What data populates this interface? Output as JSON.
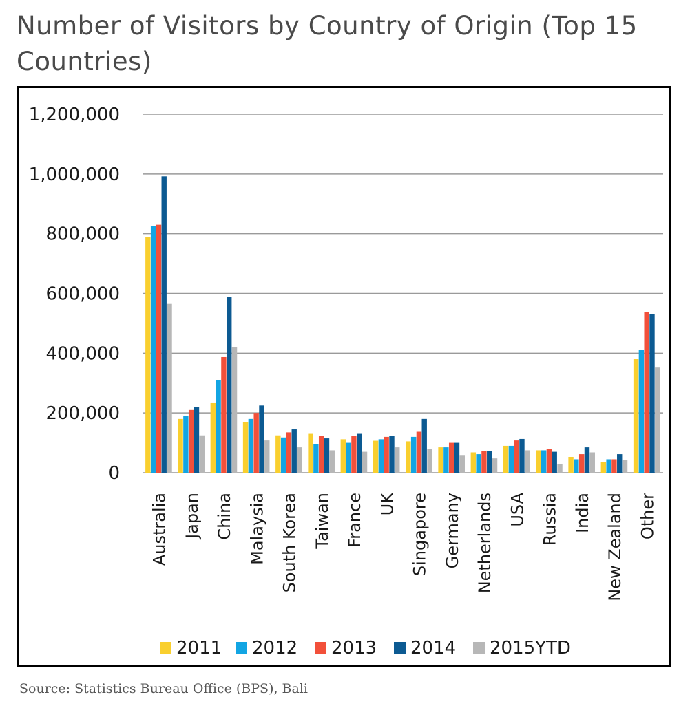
{
  "title": "Number of Visitors by Country of Origin (Top 15 Countries)",
  "source": "Source: Statistics Bureau Office (BPS), Bali",
  "chart_data": {
    "type": "bar",
    "categories": [
      "Australia",
      "Japan",
      "China",
      "Malaysia",
      "South Korea",
      "Taiwan",
      "France",
      "UK",
      "Singapore",
      "Germany",
      "Netherlands",
      "USA",
      "Russia",
      "India",
      "New Zealand",
      "Other"
    ],
    "series": [
      {
        "name": "2011",
        "color": "#f9cf2e",
        "values": [
          790000,
          180000,
          235000,
          170000,
          125000,
          130000,
          112000,
          107000,
          105000,
          85000,
          68000,
          90000,
          75000,
          53000,
          35000,
          380000
        ]
      },
      {
        "name": "2012",
        "color": "#12a5e3",
        "values": [
          825000,
          190000,
          310000,
          180000,
          118000,
          95000,
          100000,
          112000,
          120000,
          85000,
          62000,
          90000,
          75000,
          45000,
          45000,
          410000
        ]
      },
      {
        "name": "2013",
        "color": "#f2503a",
        "values": [
          830000,
          210000,
          387000,
          200000,
          135000,
          123000,
          123000,
          120000,
          137000,
          100000,
          72000,
          108000,
          80000,
          62000,
          45000,
          537000
        ]
      },
      {
        "name": "2014",
        "color": "#0c5a92",
        "values": [
          992000,
          220000,
          588000,
          225000,
          145000,
          115000,
          130000,
          123000,
          180000,
          100000,
          72000,
          113000,
          70000,
          85000,
          62000,
          532000
        ]
      },
      {
        "name": "2015YTD",
        "color": "#b7b7b7",
        "values": [
          565000,
          125000,
          420000,
          108000,
          85000,
          75000,
          70000,
          85000,
          80000,
          57000,
          48000,
          75000,
          30000,
          68000,
          42000,
          352000
        ]
      }
    ],
    "yticks": [
      "1,200,000",
      "1,000,000",
      "800,000",
      "600,000",
      "400,000",
      "200,000",
      "0"
    ],
    "ylim": [
      0,
      1200000
    ],
    "grid": true,
    "legend_position": "bottom"
  }
}
